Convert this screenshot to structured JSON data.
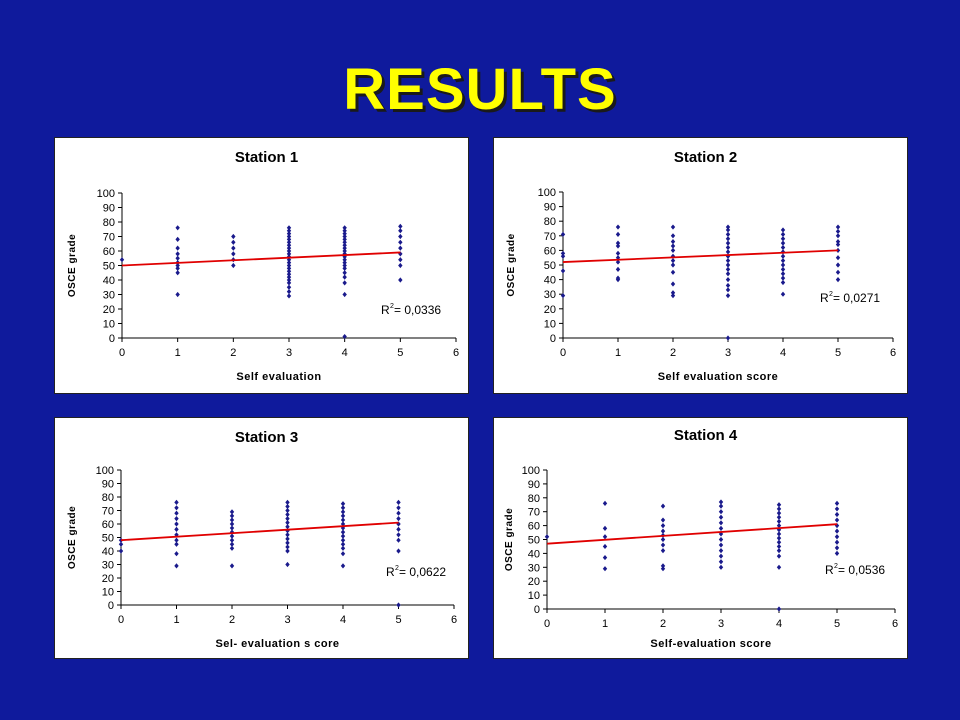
{
  "slide": {
    "title": "RESULTS"
  },
  "colors": {
    "background": "#0f1a9c",
    "title": "#ffff00",
    "points": "#1a1a8c",
    "trendline": "#e00000"
  },
  "chart_data": [
    {
      "type": "scatter",
      "title": "Station 1",
      "xlabel": "Self evaluation",
      "ylabel": "OSCE grade",
      "xlim": [
        0,
        6
      ],
      "ylim": [
        0,
        100
      ],
      "xticks": [
        0,
        1,
        2,
        3,
        4,
        5,
        6
      ],
      "yticks": [
        0,
        10,
        20,
        30,
        40,
        50,
        60,
        70,
        80,
        90,
        100
      ],
      "r2_label": "R",
      "r2_value": " = 0,0336",
      "trendline": {
        "x": [
          0,
          5
        ],
        "y": [
          50,
          59
        ]
      },
      "points": {
        "0": [
          54
        ],
        "1": [
          30,
          45,
          48,
          50,
          52,
          55,
          58,
          62,
          68,
          76
        ],
        "2": [
          50,
          54,
          58,
          62,
          66,
          70
        ],
        "3": [
          29,
          32,
          35,
          38,
          40,
          42,
          44,
          46,
          48,
          50,
          52,
          54,
          56,
          58,
          60,
          62,
          64,
          66,
          68,
          70,
          72,
          74,
          76
        ],
        "4": [
          1,
          30,
          38,
          42,
          45,
          48,
          50,
          52,
          54,
          56,
          58,
          60,
          62,
          64,
          66,
          68,
          70,
          72,
          74,
          76
        ],
        "5": [
          40,
          50,
          54,
          58,
          62,
          66,
          70,
          74,
          77
        ]
      }
    },
    {
      "type": "scatter",
      "title": "Station 2",
      "xlabel": "Self evaluation score",
      "ylabel": "OSCE grade",
      "xlim": [
        0,
        6
      ],
      "ylim": [
        0,
        100
      ],
      "xticks": [
        0,
        1,
        2,
        3,
        4,
        5,
        6
      ],
      "yticks": [
        0,
        10,
        20,
        30,
        40,
        50,
        60,
        70,
        80,
        90,
        100
      ],
      "r2_label": "R",
      "r2_value": " = 0,0271",
      "trendline": {
        "x": [
          0,
          5
        ],
        "y": [
          52,
          60
        ]
      },
      "points": {
        "0": [
          29,
          46,
          56,
          58,
          71
        ],
        "1": [
          40,
          41,
          47,
          52,
          55,
          58,
          63,
          65,
          71,
          76
        ],
        "2": [
          29,
          31,
          37,
          45,
          50,
          53,
          56,
          60,
          63,
          66,
          70,
          76
        ],
        "3": [
          0,
          29,
          33,
          36,
          40,
          44,
          47,
          50,
          53,
          56,
          59,
          62,
          65,
          68,
          71,
          74,
          76
        ],
        "4": [
          30,
          38,
          41,
          44,
          47,
          50,
          53,
          56,
          59,
          62,
          65,
          68,
          71,
          74
        ],
        "5": [
          40,
          45,
          50,
          55,
          60,
          64,
          66,
          70,
          73,
          76
        ]
      }
    },
    {
      "type": "scatter",
      "title": "Station 3",
      "xlabel": "Sel- evaluation s core",
      "ylabel": "OSCE grade",
      "xlim": [
        0,
        6
      ],
      "ylim": [
        0,
        100
      ],
      "xticks": [
        0,
        1,
        2,
        3,
        4,
        5,
        6
      ],
      "yticks": [
        0,
        10,
        20,
        30,
        40,
        50,
        60,
        70,
        80,
        90,
        100
      ],
      "r2_label": "R",
      "r2_value": " = 0,0622",
      "trendline": {
        "x": [
          0,
          5
        ],
        "y": [
          48,
          61
        ]
      },
      "points": {
        "0": [
          40,
          45,
          48
        ],
        "1": [
          29,
          38,
          45,
          48,
          52,
          56,
          60,
          64,
          68,
          72,
          76
        ],
        "2": [
          29,
          42,
          45,
          48,
          51,
          54,
          57,
          60,
          63,
          66,
          69
        ],
        "3": [
          30,
          40,
          43,
          46,
          49,
          52,
          55,
          58,
          61,
          64,
          67,
          70,
          73,
          76
        ],
        "4": [
          29,
          38,
          42,
          45,
          48,
          51,
          54,
          57,
          60,
          63,
          66,
          69,
          72,
          75
        ],
        "5": [
          0,
          40,
          48,
          52,
          56,
          60,
          64,
          68,
          72,
          76
        ]
      }
    },
    {
      "type": "scatter",
      "title": "Station 4",
      "xlabel": "Self-evaluation score",
      "ylabel": "OSCE grade",
      "xlim": [
        0,
        6
      ],
      "ylim": [
        0,
        100
      ],
      "xticks": [
        0,
        1,
        2,
        3,
        4,
        5,
        6
      ],
      "yticks": [
        0,
        10,
        20,
        30,
        40,
        50,
        60,
        70,
        80,
        90,
        100
      ],
      "r2_label": "R",
      "r2_value": " = 0,0536",
      "trendline": {
        "x": [
          0,
          5
        ],
        "y": [
          47,
          61
        ]
      },
      "points": {
        "0": [
          52
        ],
        "1": [
          29,
          37,
          45,
          52,
          58,
          76
        ],
        "2": [
          29,
          31,
          42,
          46,
          50,
          53,
          56,
          60,
          64,
          74
        ],
        "3": [
          30,
          34,
          38,
          42,
          46,
          50,
          54,
          58,
          62,
          66,
          70,
          74,
          77
        ],
        "4": [
          0,
          30,
          38,
          42,
          45,
          48,
          51,
          54,
          57,
          60,
          63,
          66,
          69,
          72,
          75
        ],
        "5": [
          40,
          44,
          48,
          52,
          56,
          60,
          64,
          68,
          72,
          76
        ]
      }
    }
  ]
}
